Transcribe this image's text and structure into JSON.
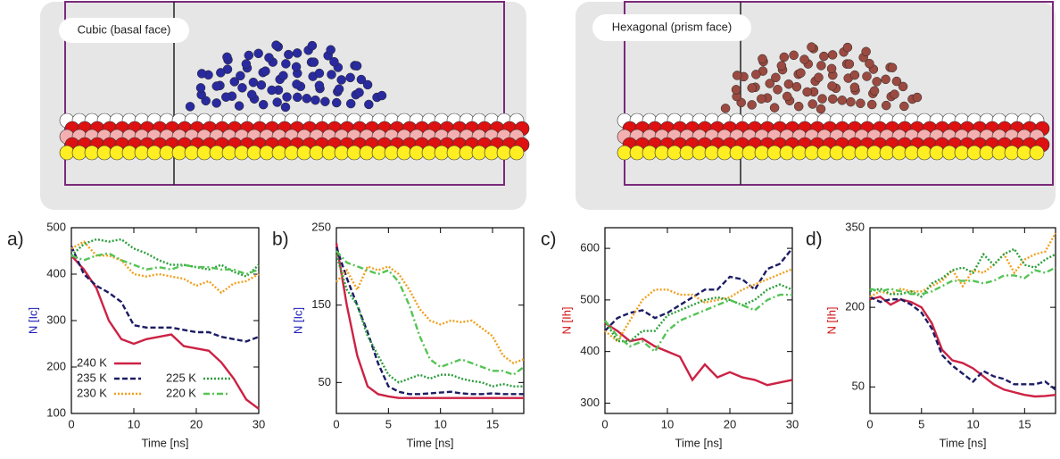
{
  "images": [
    {
      "label": "Cubic (basal face)",
      "color": "#1a1ab4"
    },
    {
      "label": "Hexagonal (prism face)",
      "color": "#d01010"
    }
  ],
  "chart_data": [
    {
      "type": "line",
      "panel_label": "a)",
      "xlabel": "Time [ns]",
      "ylabel": "N [Ic]",
      "ylabel_color": "#1a1ab4",
      "xlim": [
        0,
        30
      ],
      "xticks": [
        0,
        10,
        20,
        30
      ],
      "ylim": [
        100,
        500
      ],
      "yticks": [
        100,
        200,
        300,
        400,
        500
      ],
      "legend": "lower left",
      "x": [
        0,
        2,
        4,
        6,
        8,
        10,
        12,
        14,
        16,
        18,
        20,
        22,
        24,
        26,
        28,
        30
      ],
      "series": [
        {
          "name": "240 K",
          "color": "#cc2244",
          "dash": "solid",
          "values": [
            440,
            410,
            370,
            300,
            260,
            250,
            260,
            265,
            270,
            245,
            240,
            235,
            210,
            175,
            130,
            110
          ]
        },
        {
          "name": "235 K",
          "color": "#1c1c64",
          "dash": "dashed",
          "values": [
            460,
            400,
            375,
            360,
            340,
            290,
            285,
            285,
            285,
            280,
            275,
            275,
            265,
            260,
            255,
            265
          ]
        },
        {
          "name": "230 K",
          "color": "#f0a020",
          "dash": "dotted",
          "values": [
            455,
            470,
            440,
            440,
            430,
            400,
            395,
            400,
            395,
            390,
            375,
            385,
            360,
            380,
            385,
            400
          ]
        },
        {
          "name": "225 K",
          "color": "#2e9e3e",
          "dash": "dotted",
          "values": [
            440,
            465,
            475,
            470,
            475,
            455,
            445,
            430,
            420,
            420,
            415,
            410,
            420,
            405,
            395,
            420
          ]
        },
        {
          "name": "220 K",
          "color": "#55c455",
          "dash": "dashdot",
          "values": [
            440,
            430,
            440,
            445,
            430,
            420,
            410,
            415,
            410,
            420,
            415,
            415,
            410,
            410,
            400,
            410
          ]
        }
      ]
    },
    {
      "type": "line",
      "panel_label": "b)",
      "xlabel": "Time [ns]",
      "ylabel": "N [Ic]",
      "ylabel_color": "#1a1ab4",
      "xlim": [
        0,
        18
      ],
      "xticks": [
        0,
        5,
        10,
        15
      ],
      "ylim": [
        10,
        250
      ],
      "yticks": [
        50,
        150,
        250
      ],
      "x": [
        0,
        1,
        2,
        3,
        4,
        5,
        6,
        7,
        8,
        9,
        10,
        11,
        12,
        13,
        14,
        15,
        16,
        17,
        18
      ],
      "series": [
        {
          "color": "#cc2244",
          "dash": "solid",
          "values": [
            230,
            150,
            85,
            45,
            35,
            32,
            30,
            30,
            30,
            30,
            30,
            30,
            30,
            30,
            30,
            30,
            30,
            30,
            30
          ]
        },
        {
          "color": "#1c1c64",
          "dash": "dashed",
          "values": [
            225,
            185,
            150,
            115,
            75,
            45,
            38,
            35,
            35,
            36,
            37,
            38,
            36,
            35,
            35,
            36,
            35,
            35,
            35
          ]
        },
        {
          "color": "#f0a020",
          "dash": "dotted",
          "values": [
            180,
            195,
            170,
            200,
            195,
            200,
            190,
            170,
            145,
            130,
            125,
            130,
            128,
            130,
            120,
            110,
            85,
            75,
            80
          ]
        },
        {
          "color": "#2e9e3e",
          "dash": "dotted",
          "values": [
            215,
            170,
            150,
            110,
            85,
            60,
            50,
            55,
            60,
            55,
            60,
            60,
            55,
            52,
            50,
            45,
            48,
            45,
            45
          ]
        },
        {
          "color": "#55c455",
          "dash": "dashdot",
          "values": [
            220,
            205,
            200,
            195,
            190,
            195,
            180,
            150,
            110,
            80,
            70,
            75,
            80,
            75,
            70,
            65,
            65,
            60,
            70
          ]
        }
      ]
    },
    {
      "type": "line",
      "panel_label": "c)",
      "xlabel": "Time [ns]",
      "ylabel": "N [Ih]",
      "ylabel_color": "#d01010",
      "xlim": [
        0,
        30
      ],
      "xticks": [
        0,
        10,
        20,
        30
      ],
      "ylim": [
        280,
        640
      ],
      "yticks": [
        300,
        400,
        500,
        600
      ],
      "x": [
        0,
        2,
        4,
        6,
        8,
        10,
        12,
        14,
        16,
        18,
        20,
        22,
        24,
        26,
        28,
        30
      ],
      "series": [
        {
          "color": "#cc2244",
          "dash": "solid",
          "values": [
            455,
            440,
            420,
            425,
            410,
            400,
            390,
            345,
            375,
            350,
            360,
            350,
            345,
            335,
            340,
            345
          ]
        },
        {
          "color": "#1c1c64",
          "dash": "dashed",
          "values": [
            440,
            465,
            475,
            480,
            465,
            475,
            490,
            505,
            520,
            520,
            545,
            540,
            520,
            560,
            570,
            600
          ]
        },
        {
          "color": "#f0a020",
          "dash": "dotted",
          "values": [
            440,
            420,
            460,
            500,
            520,
            520,
            510,
            510,
            495,
            500,
            505,
            520,
            530,
            540,
            550,
            560
          ]
        },
        {
          "color": "#2e9e3e",
          "dash": "dotted",
          "values": [
            460,
            420,
            420,
            440,
            440,
            470,
            480,
            490,
            500,
            505,
            500,
            490,
            500,
            520,
            530,
            520
          ]
        },
        {
          "color": "#55c455",
          "dash": "dashdot",
          "values": [
            460,
            430,
            410,
            420,
            400,
            440,
            460,
            470,
            480,
            490,
            500,
            490,
            480,
            500,
            510,
            510
          ]
        }
      ]
    },
    {
      "type": "line",
      "panel_label": "d)",
      "xlabel": "Time [ns]",
      "ylabel": "N [Ih]",
      "ylabel_color": "#d01010",
      "xlim": [
        0,
        18
      ],
      "xticks": [
        0,
        5,
        10,
        15
      ],
      "ylim": [
        0,
        350
      ],
      "yticks": [
        50,
        200,
        350
      ],
      "x": [
        0,
        1,
        2,
        3,
        4,
        5,
        6,
        7,
        8,
        9,
        10,
        11,
        12,
        13,
        14,
        15,
        16,
        17,
        18
      ],
      "series": [
        {
          "color": "#cc2244",
          "dash": "solid",
          "values": [
            215,
            220,
            205,
            215,
            210,
            200,
            170,
            120,
            100,
            95,
            85,
            70,
            55,
            45,
            40,
            35,
            32,
            33,
            35
          ]
        },
        {
          "color": "#1c1c64",
          "dash": "dashed",
          "values": [
            220,
            210,
            215,
            215,
            205,
            190,
            160,
            110,
            90,
            75,
            60,
            80,
            70,
            65,
            55,
            55,
            55,
            60,
            45
          ]
        },
        {
          "color": "#f0a020",
          "dash": "dotted",
          "values": [
            220,
            230,
            225,
            235,
            230,
            230,
            240,
            250,
            270,
            240,
            270,
            265,
            280,
            300,
            265,
            290,
            300,
            305,
            340
          ]
        },
        {
          "color": "#2e9e3e",
          "dash": "dotted",
          "values": [
            230,
            235,
            225,
            225,
            230,
            220,
            245,
            255,
            270,
            275,
            265,
            300,
            280,
            300,
            310,
            280,
            275,
            290,
            300
          ]
        },
        {
          "color": "#55c455",
          "dash": "dashdot",
          "values": [
            235,
            230,
            235,
            230,
            225,
            225,
            230,
            240,
            250,
            250,
            250,
            245,
            250,
            260,
            260,
            255,
            270,
            265,
            275
          ]
        }
      ]
    }
  ]
}
